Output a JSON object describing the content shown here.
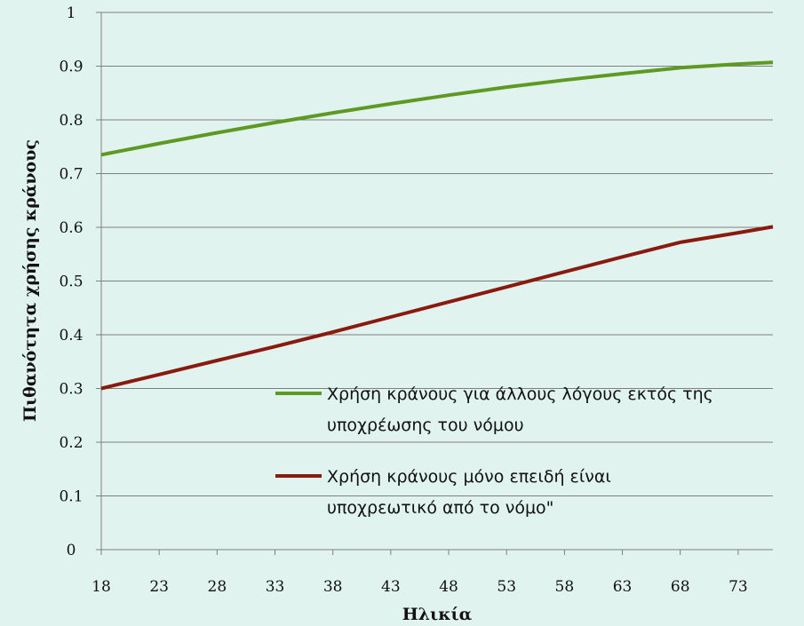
{
  "chart_data": {
    "type": "line",
    "title": "",
    "xlabel": "Ηλικία",
    "ylabel": "Πιθανότητα χρήσης κράνους",
    "x_ticks": [
      18,
      23,
      28,
      33,
      38,
      43,
      48,
      53,
      58,
      63,
      68,
      73
    ],
    "xlim": [
      18,
      76
    ],
    "ylim": [
      0,
      1
    ],
    "y_ticks": [
      "0",
      "0.1",
      "0.2",
      "0.3",
      "0.4",
      "0.5",
      "0.6",
      "0.7",
      "0.8",
      "0.9",
      "1"
    ],
    "grid": true,
    "legend_position": "lower-right",
    "series": [
      {
        "name": "Χρήση κράνους για άλλους λόγους εκτός της υποχρέωσης του νόμου",
        "color": "#5e9a22",
        "x": [
          18,
          23,
          28,
          33,
          38,
          43,
          48,
          53,
          58,
          63,
          68,
          73,
          76
        ],
        "y": [
          0.735,
          0.756,
          0.776,
          0.795,
          0.813,
          0.83,
          0.846,
          0.861,
          0.874,
          0.886,
          0.897,
          0.904,
          0.907
        ]
      },
      {
        "name": "Χρήση κράνους μόνο επειδή είναι υποχρεωτικό από το νόμο\"",
        "color": "#8b1a0e",
        "x": [
          18,
          23,
          28,
          33,
          38,
          43,
          48,
          53,
          58,
          63,
          68,
          73,
          76
        ],
        "y": [
          0.3,
          0.326,
          0.352,
          0.378,
          0.405,
          0.433,
          0.461,
          0.489,
          0.517,
          0.545,
          0.572,
          0.59,
          0.601
        ]
      }
    ],
    "legend": {
      "entries": [
        {
          "line1": "Χρήση κράνους για άλλους λόγους εκτός της",
          "line2": "υποχρέωσης του νόμου",
          "color": "#5e9a22"
        },
        {
          "line1": "Χρήση κράνους μόνο επειδή είναι",
          "line2": "υποχρεωτικό από το νόμο\"",
          "color": "#8b1a0e"
        }
      ]
    }
  }
}
